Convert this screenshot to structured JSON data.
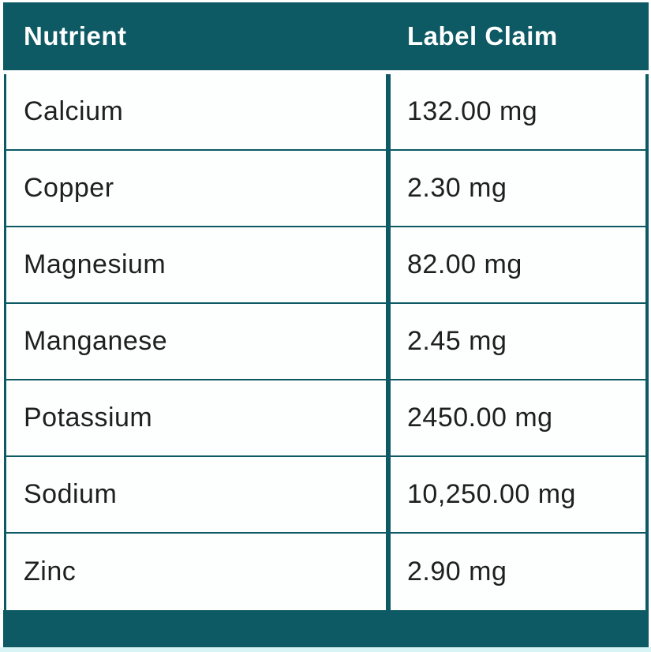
{
  "colors": {
    "teal": "#0d5a64",
    "text": "#1f1f1f",
    "bottom_edge_glow": "#d9f4f4"
  },
  "table": {
    "headers": {
      "nutrient": "Nutrient",
      "label_claim": "Label Claim"
    },
    "rows": [
      {
        "nutrient": "Calcium",
        "label_claim": "132.00 mg"
      },
      {
        "nutrient": "Copper",
        "label_claim": "2.30 mg"
      },
      {
        "nutrient": "Magnesium",
        "label_claim": "82.00 mg"
      },
      {
        "nutrient": "Manganese",
        "label_claim": "2.45 mg"
      },
      {
        "nutrient": "Potassium",
        "label_claim": "2450.00 mg"
      },
      {
        "nutrient": "Sodium",
        "label_claim": "10,250.00 mg"
      },
      {
        "nutrient": "Zinc",
        "label_claim": "2.90 mg"
      }
    ]
  }
}
